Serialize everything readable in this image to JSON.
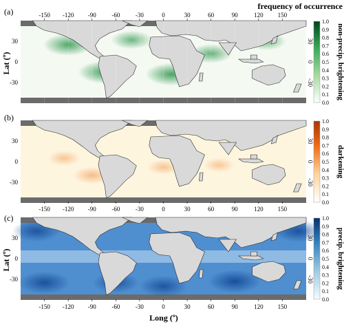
{
  "figure": {
    "colorbar_title": "frequency of occurrence",
    "x_axis_label": "Long (º)",
    "y_axis_label": "Lat (º)",
    "background_color": "#6b6b6b",
    "land_color": "#d9d9d9"
  },
  "chart_data": {
    "type": "heatmap",
    "x_ticks": [
      "-150",
      "-120",
      "-90",
      "-60",
      "-30",
      "0",
      "30",
      "60",
      "90",
      "120",
      "150"
    ],
    "y_ticks_left": [
      "30",
      "0",
      "-30"
    ],
    "y_ticks_right": [
      "30",
      "0",
      "-30"
    ],
    "colorbar_ticks": [
      "1.0",
      "0.9",
      "0.8",
      "0.7",
      "0.6",
      "0.5",
      "0.4",
      "0.3",
      "0.2",
      "0.1",
      "0.0"
    ],
    "xlim": [
      -180,
      180
    ],
    "ylim": [
      -60,
      60
    ],
    "panels": [
      {
        "letter": "(a)",
        "colorbar_label": "non-precip. brightening",
        "color_low": "#ffffff",
        "color_high": "#00441b",
        "hotspots": [
          {
            "lon": -120,
            "lat": 25,
            "value": 0.8
          },
          {
            "lon": -75,
            "lat": -15,
            "value": 0.85
          },
          {
            "lon": 10,
            "lat": -18,
            "value": 0.85
          },
          {
            "lon": -40,
            "lat": 32,
            "value": 0.55
          },
          {
            "lon": 60,
            "lat": 12,
            "value": 0.6
          },
          {
            "lon": 130,
            "lat": 30,
            "value": 0.5
          }
        ]
      },
      {
        "letter": "(b)",
        "colorbar_label": "darkening",
        "color_low": "#ffffff",
        "color_high": "#a63603",
        "hotspots": [
          {
            "lon": -90,
            "lat": -20,
            "value": 0.45
          },
          {
            "lon": -125,
            "lat": 5,
            "value": 0.3
          },
          {
            "lon": 0,
            "lat": -8,
            "value": 0.3
          },
          {
            "lon": 70,
            "lat": -5,
            "value": 0.25
          }
        ]
      },
      {
        "letter": "(c)",
        "colorbar_label": "precip. brightening",
        "color_low": "#f7fbff",
        "color_high": "#08306b",
        "hotspots": [
          {
            "lon": -150,
            "lat": -35,
            "value": 0.85
          },
          {
            "lon": 90,
            "lat": -33,
            "value": 0.9
          },
          {
            "lon": -60,
            "lat": -35,
            "value": 0.7
          },
          {
            "lon": 0,
            "lat": -40,
            "value": 0.75
          },
          {
            "lon": 170,
            "lat": 40,
            "value": 0.8
          },
          {
            "lon": -160,
            "lat": 40,
            "value": 0.75
          }
        ]
      }
    ]
  }
}
